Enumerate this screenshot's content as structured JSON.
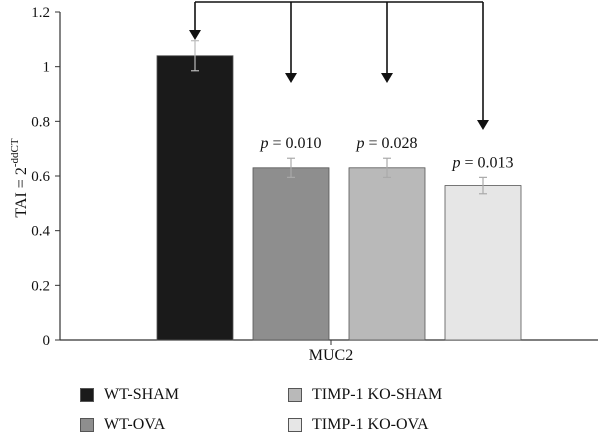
{
  "chart_data": {
    "type": "bar",
    "categories": [
      "MUC2"
    ],
    "ylabel": "TAI = 2",
    "ylabel_superscript": "-ddCT",
    "ylim": [
      0,
      1.2
    ],
    "yticks": [
      "0",
      "0.2",
      "0.4",
      "0.6",
      "0.8",
      "1",
      "1.2"
    ],
    "ytick_values": [
      0,
      0.2,
      0.4,
      0.6,
      0.8,
      1.0,
      1.2
    ],
    "grid": false,
    "legend_position": "bottom",
    "series": [
      {
        "name": "WT-SHAM",
        "values": [
          1.04
        ],
        "error": [
          0.055
        ],
        "color": "#1a1a1a",
        "annotation": ""
      },
      {
        "name": "WT-OVA",
        "values": [
          0.63
        ],
        "error": [
          0.035
        ],
        "color": "#8e8e8e",
        "annotation": "= 0.010"
      },
      {
        "name": "TIMP-1 KO-SHAM",
        "values": [
          0.63
        ],
        "error": [
          0.035
        ],
        "color": "#b9b9b9",
        "annotation": "= 0.028"
      },
      {
        "name": "TIMP-1 KO-OVA",
        "values": [
          0.565
        ],
        "error": [
          0.03
        ],
        "color": "#e6e6e6",
        "annotation": "= 0.013"
      }
    ],
    "annotation_symbol": "p"
  }
}
